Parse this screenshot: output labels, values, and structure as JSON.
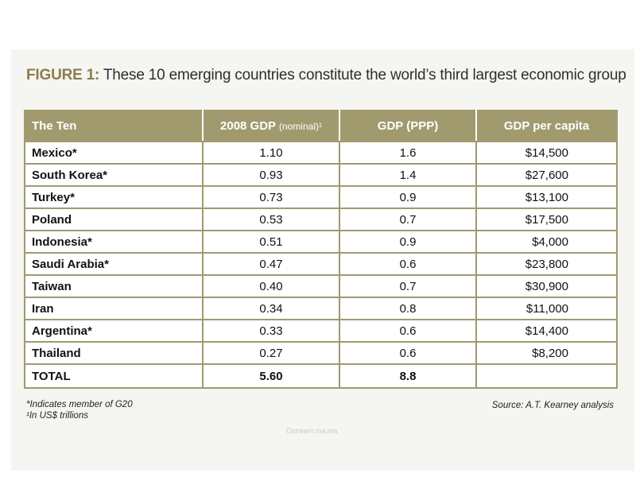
{
  "figure": {
    "title_lead": "FIGURE 1:",
    "title_text": "These 10 emerging countries constitute the world’s third largest economic group",
    "footnote_g20": "*Indicates member of G20",
    "footnote_units": "¹In US$ trillions",
    "source": "Source: A.T. Kearney analysis",
    "watermark": "Ostream.ma.ma"
  },
  "colors": {
    "header_fill": "#a19a6e",
    "title_accent": "#8a7d4e",
    "background_band": "#f5f5f1"
  },
  "chart_data": {
    "type": "table",
    "columns": [
      {
        "label": "The Ten",
        "note": ""
      },
      {
        "label": "2008 GDP",
        "note": "(nominal)¹"
      },
      {
        "label": "GDP (PPP)",
        "note": ""
      },
      {
        "label": "GDP per capita",
        "note": ""
      }
    ],
    "rows": [
      {
        "name": "Mexico*",
        "gdp_nominal": "1.10",
        "gdp_ppp": "1.6",
        "per_capita": "$14,500"
      },
      {
        "name": "South Korea*",
        "gdp_nominal": "0.93",
        "gdp_ppp": "1.4",
        "per_capita": "$27,600"
      },
      {
        "name": "Turkey*",
        "gdp_nominal": "0.73",
        "gdp_ppp": "0.9",
        "per_capita": "$13,100"
      },
      {
        "name": "Poland",
        "gdp_nominal": "0.53",
        "gdp_ppp": "0.7",
        "per_capita": "$17,500"
      },
      {
        "name": "Indonesia*",
        "gdp_nominal": "0.51",
        "gdp_ppp": "0.9",
        "per_capita": "$4,000"
      },
      {
        "name": "Saudi Arabia*",
        "gdp_nominal": "0.47",
        "gdp_ppp": "0.6",
        "per_capita": "$23,800"
      },
      {
        "name": "Taiwan",
        "gdp_nominal": "0.40",
        "gdp_ppp": "0.7",
        "per_capita": "$30,900"
      },
      {
        "name": "Iran",
        "gdp_nominal": "0.34",
        "gdp_ppp": "0.8",
        "per_capita": "$11,000"
      },
      {
        "name": "Argentina*",
        "gdp_nominal": "0.33",
        "gdp_ppp": "0.6",
        "per_capita": "$14,400"
      },
      {
        "name": "Thailand",
        "gdp_nominal": "0.27",
        "gdp_ppp": "0.6",
        "per_capita": "$8,200"
      }
    ],
    "total": {
      "name": "TOTAL",
      "gdp_nominal": "5.60",
      "gdp_ppp": "8.8",
      "per_capita": ""
    }
  }
}
